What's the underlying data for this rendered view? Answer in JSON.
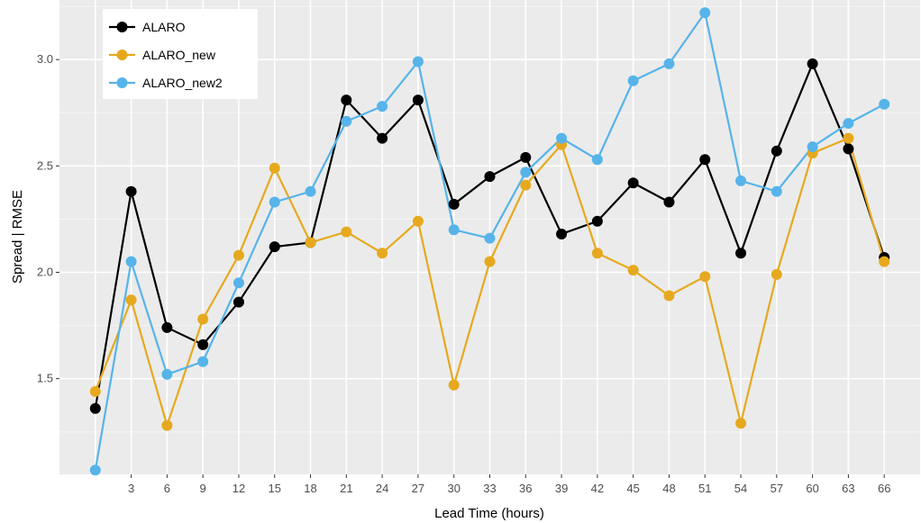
{
  "chart_data": {
    "type": "line",
    "xlabel": "Lead Time (hours)",
    "ylabel": "Spread | RMSE",
    "x": [
      0,
      3,
      6,
      9,
      12,
      15,
      18,
      21,
      24,
      27,
      30,
      33,
      36,
      39,
      42,
      45,
      48,
      51,
      54,
      57,
      60,
      63,
      66
    ],
    "x_ticks": [
      3,
      6,
      9,
      12,
      15,
      18,
      21,
      24,
      27,
      30,
      33,
      36,
      39,
      42,
      45,
      48,
      51,
      54,
      57,
      60,
      63,
      66
    ],
    "y_ticks": [
      1.5,
      2.0,
      2.5,
      3.0
    ],
    "y_tick_labels": [
      "1.5",
      "2.0",
      "2.5",
      "3.0"
    ],
    "xlim": [
      -3,
      69
    ],
    "ylim": [
      1.05,
      3.28
    ],
    "grid": true,
    "legend_position": "top-left",
    "series": [
      {
        "name": "ALARO",
        "color": "#000000",
        "values": [
          1.36,
          2.38,
          1.74,
          1.66,
          1.86,
          2.12,
          2.14,
          2.81,
          2.63,
          2.81,
          2.32,
          2.45,
          2.54,
          2.18,
          2.24,
          2.42,
          2.33,
          2.53,
          2.09,
          2.57,
          2.98,
          2.58,
          2.07
        ]
      },
      {
        "name": "ALARO_new",
        "color": "#E6A91E",
        "values": [
          1.44,
          1.87,
          1.28,
          1.78,
          2.08,
          2.49,
          2.14,
          2.19,
          2.09,
          2.24,
          1.47,
          2.05,
          2.41,
          2.6,
          2.09,
          2.01,
          1.89,
          1.98,
          1.29,
          1.99,
          2.56,
          2.63,
          2.05
        ]
      },
      {
        "name": "ALARO_new2",
        "color": "#56B4E9",
        "values": [
          1.07,
          2.05,
          1.52,
          1.58,
          1.95,
          2.33,
          2.38,
          2.71,
          2.78,
          2.99,
          2.2,
          2.16,
          2.47,
          2.63,
          2.53,
          2.9,
          2.98,
          3.22,
          2.43,
          2.38,
          2.59,
          2.7,
          2.79
        ]
      }
    ]
  }
}
